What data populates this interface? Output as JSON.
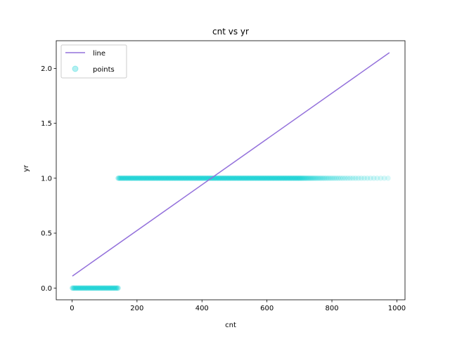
{
  "chart_data": {
    "type": "scatter",
    "title": "cnt vs yr",
    "xlabel": "cnt",
    "ylabel": "yr",
    "xlim": [
      -48.6,
      1025
    ],
    "ylim": [
      -0.107,
      2.252
    ],
    "xticks": [
      0,
      200,
      400,
      600,
      800,
      1000
    ],
    "xtick_labels": [
      "0",
      "200",
      "400",
      "600",
      "800",
      "1000"
    ],
    "yticks": [
      0.0,
      0.5,
      1.0,
      1.5,
      2.0
    ],
    "ytick_labels": [
      "0.0",
      "0.5",
      "1.0",
      "1.5",
      "2.0"
    ],
    "grid": false,
    "legend": {
      "placement": "top-left",
      "entries": [
        "line",
        "points"
      ]
    },
    "colors": {
      "line": "#9370DB",
      "points": "#00CED1"
    },
    "series": [
      {
        "name": "line",
        "kind": "line",
        "x": [
          1,
          977
        ],
        "y": [
          0.109,
          2.143
        ]
      },
      {
        "name": "points",
        "kind": "scatter",
        "groups": [
          {
            "y": 0,
            "x_min": 1,
            "x_max": 142
          },
          {
            "y": 1,
            "x_min": 142,
            "x_max": 977
          }
        ]
      }
    ]
  }
}
